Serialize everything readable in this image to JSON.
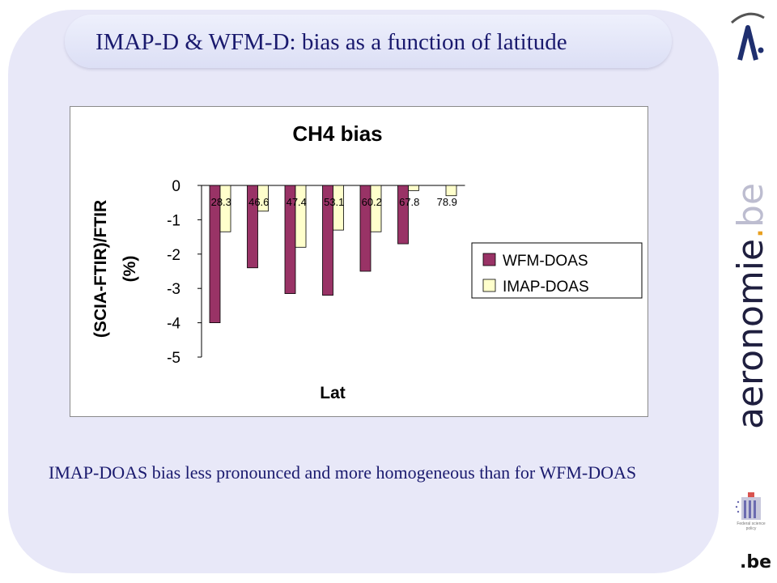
{
  "slide": {
    "title": "IMAP-D & WFM-D: bias as a function of latitude",
    "caption": "IMAP-DOAS bias less pronounced and more homogeneous than for WFM-DOAS"
  },
  "branding": {
    "site_name": "aeronomie",
    "site_dot": ".",
    "site_suffix": "be",
    "agency_text": "Federal science policy",
    "domain_mark": ".be"
  },
  "colors": {
    "wfm": "#993366",
    "imap": "#ffffcc",
    "text_dark": "#1a1a6e"
  },
  "chart_data": {
    "type": "bar",
    "title": "CH4 bias",
    "xlabel": "Lat",
    "ylabel_line1": "(SCIA-FTIR)/FTIR",
    "ylabel_line2": "(%)",
    "categories": [
      "28.3",
      "46.6",
      "47.4",
      "53.1",
      "60.2",
      "67.8",
      "78.9"
    ],
    "series": [
      {
        "name": "WFM-DOAS",
        "values": [
          -4.0,
          -2.4,
          -3.15,
          -3.2,
          -2.5,
          -1.7,
          null
        ]
      },
      {
        "name": "IMAP-DOAS",
        "values": [
          -1.35,
          -0.75,
          -1.8,
          -1.3,
          -1.35,
          -0.15,
          -0.3
        ]
      }
    ],
    "ylim": [
      -5,
      0
    ],
    "yticks": [
      0,
      -1,
      -2,
      -3,
      -4,
      -5
    ],
    "legend_position": "right",
    "grid": false
  }
}
